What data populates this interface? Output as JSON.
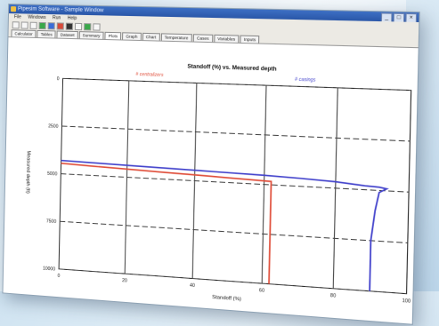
{
  "window": {
    "title": "Pipesim Software - Sample Window",
    "buttons": [
      "_",
      "□",
      "×"
    ]
  },
  "menu": [
    "File",
    "Windows",
    "Run",
    "Help"
  ],
  "tabs": [
    {
      "label": "Calculator",
      "active": false
    },
    {
      "label": "Tables",
      "active": false
    },
    {
      "label": "Dataset",
      "active": false
    },
    {
      "label": "Summary",
      "active": false
    },
    {
      "label": "Plots",
      "active": true
    },
    {
      "label": "Graph",
      "active": false
    },
    {
      "label": "Chart",
      "active": false
    },
    {
      "label": "Temperature",
      "active": false
    },
    {
      "label": "Cases",
      "active": false
    },
    {
      "label": "Variables",
      "active": false
    },
    {
      "label": "Inputs",
      "active": false
    }
  ],
  "chart_data": {
    "type": "line",
    "title": "Standoff (%) vs. Measured depth",
    "xlabel": "Standoff (%)",
    "ylabel": "Measured depth (ft)",
    "xlim": [
      0,
      100
    ],
    "ylim": [
      0,
      10000
    ],
    "y_inverted": true,
    "x_ticks": [
      "0",
      "20",
      "40",
      "60",
      "80",
      "100"
    ],
    "y_ticks": [
      "0",
      "2500",
      "5000",
      "7500",
      "10000"
    ],
    "legend": [
      {
        "label": "# centralizers",
        "color": "#e0503c"
      },
      {
        "label": "# casings",
        "color": "#4444cc"
      }
    ],
    "series": [
      {
        "name": "# centralizers",
        "color": "#e0503c",
        "x": [
          0,
          10,
          20,
          30,
          40,
          50,
          60,
          62,
          62,
          62,
          62
        ],
        "y": [
          4450,
          4520,
          4580,
          4640,
          4700,
          4760,
          4820,
          4830,
          5500,
          7500,
          10000
        ]
      },
      {
        "name": "# casings",
        "color": "#4444cc",
        "x": [
          0,
          20,
          40,
          60,
          70,
          80,
          88,
          92,
          94,
          92,
          91,
          90,
          90
        ],
        "y": [
          4300,
          4380,
          4460,
          4540,
          4600,
          4680,
          4800,
          4840,
          4900,
          5100,
          6000,
          7500,
          10000
        ]
      }
    ]
  }
}
